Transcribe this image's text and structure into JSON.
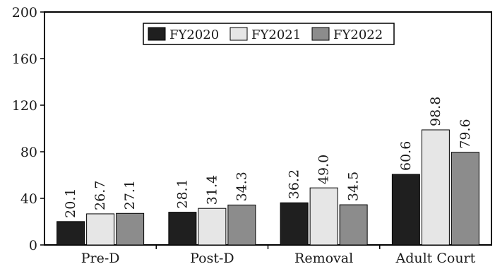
{
  "chart_data": {
    "type": "bar",
    "title": "",
    "xlabel": "",
    "ylabel": "",
    "categories": [
      "Pre-D",
      "Post-D",
      "Removal",
      "Adult Court"
    ],
    "series": [
      {
        "name": "FY2020",
        "values": [
          20.1,
          28.1,
          36.2,
          60.6
        ],
        "value_labels": [
          "20.1",
          "28.1",
          "36.2",
          "60.6"
        ],
        "color": "#1f1f1f"
      },
      {
        "name": "FY2021",
        "values": [
          26.7,
          31.4,
          49.0,
          98.8
        ],
        "value_labels": [
          "26.7",
          "31.4",
          "49.0",
          "98.8"
        ],
        "color": "#e6e6e6"
      },
      {
        "name": "FY2022",
        "values": [
          27.1,
          34.3,
          34.5,
          79.6
        ],
        "value_labels": [
          "27.1",
          "34.3",
          "34.5",
          "79.6"
        ],
        "color": "#8c8c8c"
      }
    ],
    "ylim": [
      0,
      200
    ],
    "yticks": [
      0,
      40,
      80,
      120,
      160,
      200
    ],
    "ytick_labels": [
      "0",
      "40",
      "80",
      "120",
      "160",
      "200"
    ],
    "grid": false,
    "legend_position": "top-center",
    "value_labels_rotated": true
  }
}
